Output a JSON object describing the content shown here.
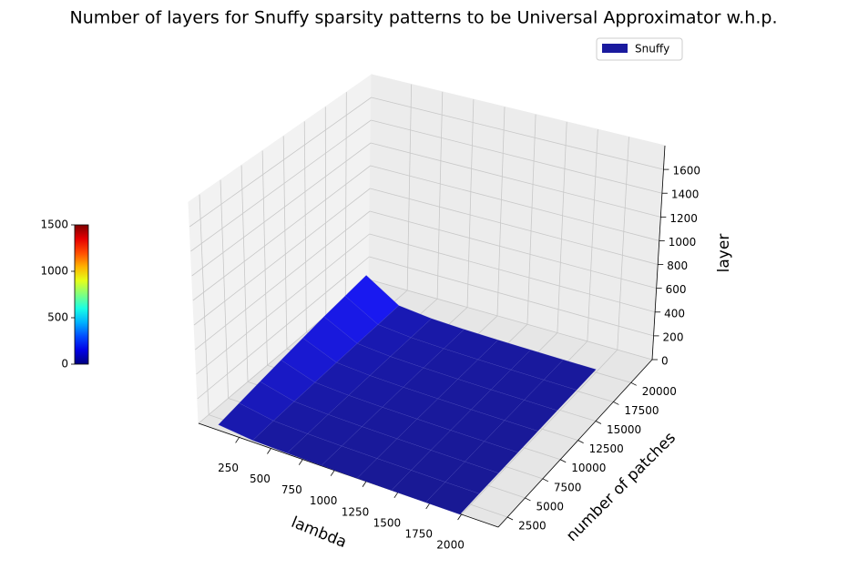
{
  "chart_data": {
    "type": "surface3d",
    "title": "Number of layers for Snuffy sparsity patterns to be Universal Approximator w.h.p.",
    "xlabel": "lambda",
    "ylabel": "number of patches",
    "zlabel": "layer",
    "xlim": [
      -70,
      2290
    ],
    "xticks": [
      250,
      500,
      750,
      1000,
      1250,
      1500,
      1750,
      2000
    ],
    "ylim": [
      1200,
      23000
    ],
    "yticks": [
      2500,
      5000,
      7500,
      10000,
      12500,
      15000,
      17500,
      20000
    ],
    "zlim": [
      0,
      1800
    ],
    "zticks": [
      0,
      200,
      400,
      600,
      800,
      1000,
      1200,
      1400,
      1600
    ],
    "grid": true,
    "legend_position": "upper right",
    "colorbar": {
      "colormap": "jet",
      "clim": [
        0,
        1500
      ],
      "ticks": [
        0,
        500,
        1000,
        1500
      ]
    },
    "series": [
      {
        "name": "Snuffy",
        "color": "#1a1a9e",
        "alpha": 0.9,
        "x": [
          100,
          370,
          640,
          910,
          1190,
          1460,
          1730,
          2000
        ],
        "y": [
          1000,
          3700,
          6400,
          9100,
          11900,
          14600,
          17300,
          20000
        ],
        "z": [
          [
            60,
            30,
            22,
            18,
            15,
            13,
            12,
            11
          ],
          [
            90,
            40,
            28,
            22,
            19,
            17,
            15,
            14
          ],
          [
            120,
            48,
            33,
            26,
            22,
            20,
            18,
            16
          ],
          [
            150,
            55,
            37,
            29,
            25,
            22,
            20,
            18
          ],
          [
            180,
            62,
            41,
            32,
            27,
            24,
            22,
            20
          ],
          [
            210,
            68,
            44,
            35,
            29,
            26,
            24,
            22
          ],
          [
            235,
            74,
            47,
            37,
            31,
            28,
            25,
            23
          ],
          [
            260,
            80,
            50,
            39,
            33,
            29,
            27,
            25
          ]
        ]
      }
    ]
  }
}
